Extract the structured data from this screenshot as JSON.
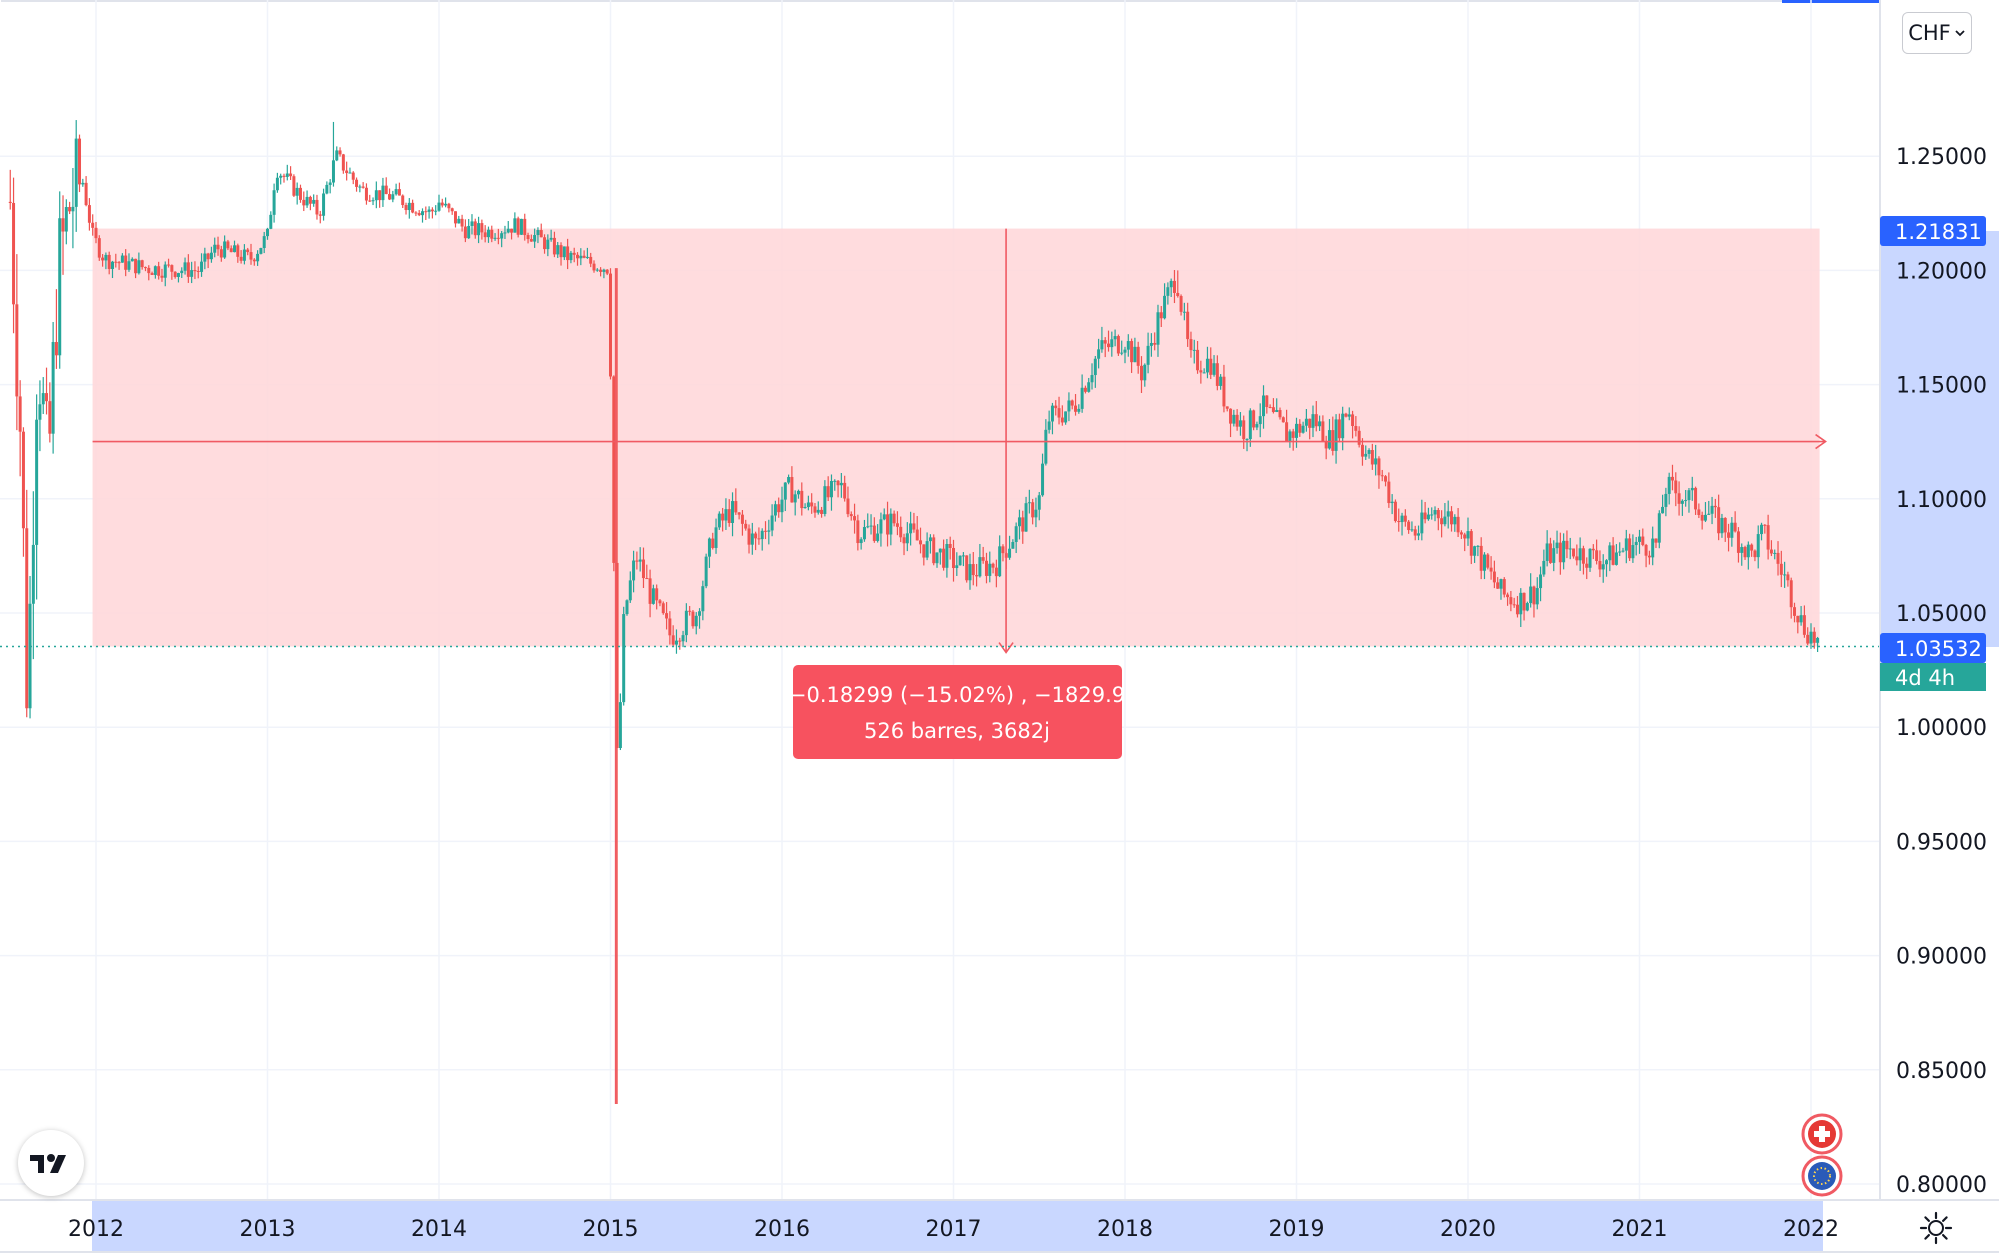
{
  "currency_selector": {
    "label": "CHF"
  },
  "price_tags": {
    "range_top": "1.21831",
    "last_price": "1.03532",
    "countdown": "4d 4h"
  },
  "measure_tooltip": {
    "line1": "−0.18299 (−15.02%) , −1829.9",
    "line2": "526 barres, 3682j"
  },
  "colors": {
    "up": "#26a69a",
    "down": "#ef5350",
    "range_fill": "#ffd6d8",
    "range_line": "#f05a63",
    "tooltip_bg": "#f7525f",
    "price_tag": "#2962ff",
    "countdown_tag": "#26a69a",
    "axis_highlight": "#c9d7ff"
  },
  "icons": [
    "tradingview-logo-icon",
    "swiss-flag-icon",
    "eu-flag-icon",
    "settings-icon",
    "chevron-down-icon"
  ],
  "chart_data": {
    "type": "candlestick",
    "xlabel": "",
    "ylabel": "",
    "x_ticks": [
      "2012",
      "2013",
      "2014",
      "2015",
      "2016",
      "2017",
      "2018",
      "2019",
      "2020",
      "2021",
      "2022"
    ],
    "y_ticks": [
      "0.80000",
      "0.85000",
      "0.90000",
      "0.95000",
      "1.00000",
      "1.05000",
      "1.10000",
      "1.15000",
      "1.20000",
      "1.25000"
    ],
    "xlim": [
      2011.5,
      2022.35
    ],
    "ylim": [
      0.793,
      1.29
    ],
    "grid": true,
    "last_price": 1.03532,
    "measure_range": {
      "from_x": 2011.98,
      "to_x": 2022.05,
      "from_y": 1.21831,
      "to_y": 1.03532
    },
    "series": [
      {
        "key": [
          [
            2011.5,
            1.23
          ],
          [
            2011.56,
            1.13
          ],
          [
            2011.6,
            1.01
          ],
          [
            2011.66,
            1.17
          ],
          [
            2011.72,
            1.11
          ],
          [
            2011.78,
            1.2
          ],
          [
            2011.85,
            1.23
          ],
          [
            2011.92,
            1.24
          ],
          [
            2011.98,
            1.215
          ],
          [
            2012.05,
            1.205
          ],
          [
            2012.3,
            1.201
          ],
          [
            2012.6,
            1.2
          ],
          [
            2012.7,
            1.21
          ],
          [
            2012.9,
            1.205
          ],
          [
            2013.0,
            1.215
          ],
          [
            2013.05,
            1.245
          ],
          [
            2013.2,
            1.232
          ],
          [
            2013.3,
            1.225
          ],
          [
            2013.4,
            1.25
          ],
          [
            2013.55,
            1.235
          ],
          [
            2013.75,
            1.232
          ],
          [
            2013.95,
            1.225
          ],
          [
            2014.0,
            1.23
          ],
          [
            2014.15,
            1.218
          ],
          [
            2014.3,
            1.217
          ],
          [
            2014.45,
            1.22
          ],
          [
            2014.6,
            1.213
          ],
          [
            2014.75,
            1.206
          ],
          [
            2014.99,
            1.201
          ],
          [
            2015.04,
            0.98
          ],
          [
            2015.08,
            1.05
          ],
          [
            2015.15,
            1.075
          ],
          [
            2015.25,
            1.055
          ],
          [
            2015.35,
            1.04
          ],
          [
            2015.5,
            1.05
          ],
          [
            2015.6,
            1.085
          ],
          [
            2015.7,
            1.095
          ],
          [
            2015.85,
            1.08
          ],
          [
            2015.95,
            1.095
          ],
          [
            2016.05,
            1.105
          ],
          [
            2016.15,
            1.095
          ],
          [
            2016.35,
            1.105
          ],
          [
            2016.45,
            1.085
          ],
          [
            2016.65,
            1.09
          ],
          [
            2016.85,
            1.078
          ],
          [
            2016.95,
            1.075
          ],
          [
            2017.1,
            1.068
          ],
          [
            2017.25,
            1.072
          ],
          [
            2017.4,
            1.09
          ],
          [
            2017.5,
            1.1
          ],
          [
            2017.55,
            1.135
          ],
          [
            2017.7,
            1.14
          ],
          [
            2017.85,
            1.165
          ],
          [
            2018.0,
            1.17
          ],
          [
            2018.1,
            1.155
          ],
          [
            2018.2,
            1.18
          ],
          [
            2018.3,
            1.198
          ],
          [
            2018.38,
            1.16
          ],
          [
            2018.5,
            1.16
          ],
          [
            2018.6,
            1.14
          ],
          [
            2018.7,
            1.13
          ],
          [
            2018.8,
            1.14
          ],
          [
            2018.95,
            1.128
          ],
          [
            2019.1,
            1.135
          ],
          [
            2019.2,
            1.125
          ],
          [
            2019.3,
            1.14
          ],
          [
            2019.4,
            1.12
          ],
          [
            2019.5,
            1.11
          ],
          [
            2019.6,
            1.09
          ],
          [
            2019.7,
            1.085
          ],
          [
            2019.8,
            1.095
          ],
          [
            2019.95,
            1.09
          ],
          [
            2020.1,
            1.07
          ],
          [
            2020.2,
            1.058
          ],
          [
            2020.3,
            1.055
          ],
          [
            2020.4,
            1.06
          ],
          [
            2020.45,
            1.075
          ],
          [
            2020.6,
            1.078
          ],
          [
            2020.7,
            1.075
          ],
          [
            2020.8,
            1.073
          ],
          [
            2020.95,
            1.08
          ],
          [
            2021.1,
            1.08
          ],
          [
            2021.15,
            1.105
          ],
          [
            2021.3,
            1.1
          ],
          [
            2021.45,
            1.09
          ],
          [
            2021.55,
            1.085
          ],
          [
            2021.65,
            1.075
          ],
          [
            2021.72,
            1.085
          ],
          [
            2021.85,
            1.065
          ],
          [
            2021.95,
            1.045
          ],
          [
            2022.05,
            1.036
          ]
        ]
      }
    ]
  }
}
